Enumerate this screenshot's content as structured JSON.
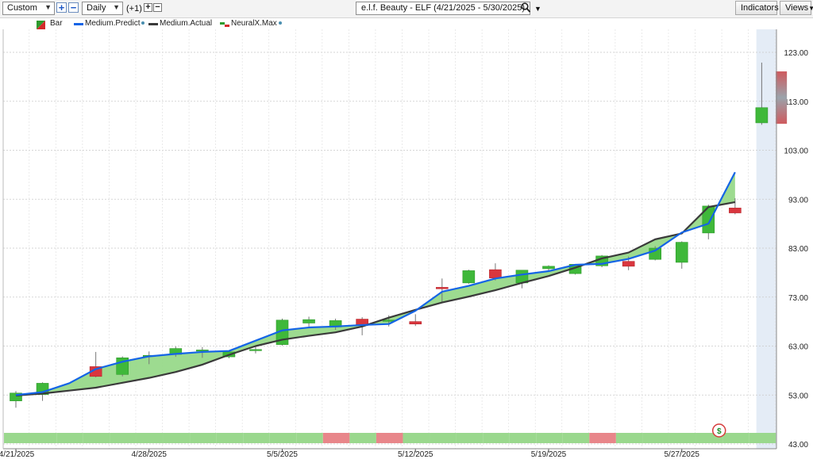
{
  "toolbar": {
    "period_select": "Custom",
    "interval_select": "Daily",
    "offset_label": "(+1)",
    "chart_title": "e.l.f. Beauty - ELF (4/21/2025 - 5/30/2025)",
    "indicators_button": "Indicators",
    "views_button": "Views",
    "icons": [
      "dropdown-arrow-icon",
      "plus-icon",
      "minus-icon",
      "search-icon",
      "chevron-down-icon"
    ]
  },
  "legend": [
    {
      "label": "Bar",
      "color": "#2e8b2e"
    },
    {
      "label": "Medium.Predict",
      "color": "#1464e6"
    },
    {
      "label": "Medium.Actual",
      "color": "#3a3a3a"
    },
    {
      "label": "NeuralX.Max",
      "color": "#d42a2a"
    }
  ],
  "chart_data": {
    "type": "candlestick",
    "x_tick_labels": [
      "4/21/2025",
      "4/28/2025",
      "5/5/2025",
      "5/12/2025",
      "5/19/2025",
      "5/27/2025"
    ],
    "y_tick_labels": [
      "43.00",
      "53.00",
      "63.00",
      "73.00",
      "83.00",
      "93.00",
      "103.00",
      "113.00",
      "123.00"
    ],
    "ylim": [
      42,
      127
    ],
    "grid": true,
    "dates": [
      "4/21",
      "4/22",
      "4/23",
      "4/24",
      "4/25",
      "4/28",
      "4/29",
      "4/30",
      "5/1",
      "5/2",
      "5/5",
      "5/6",
      "5/7",
      "5/8",
      "5/9",
      "5/12",
      "5/13",
      "5/14",
      "5/15",
      "5/16",
      "5/19",
      "5/20",
      "5/21",
      "5/22",
      "5/23",
      "5/27",
      "5/28",
      "5/29",
      "5/30"
    ],
    "candles": [
      {
        "o": 51.8,
        "h": 53.8,
        "l": 50.4,
        "c": 53.4
      },
      {
        "o": 53.1,
        "h": 55.6,
        "l": 51.8,
        "c": 55.4
      },
      null,
      {
        "o": 58.8,
        "h": 61.8,
        "l": 56.6,
        "c": 56.8
      },
      {
        "o": 57.2,
        "h": 60.9,
        "l": 56.8,
        "c": 60.6
      },
      {
        "o": 60.9,
        "h": 61.9,
        "l": 59.3,
        "c": 61.1
      },
      {
        "o": 61.3,
        "h": 62.9,
        "l": 60.8,
        "c": 62.5
      },
      {
        "o": 62.0,
        "h": 62.8,
        "l": 60.6,
        "c": 62.2
      },
      {
        "o": 60.8,
        "h": 62.0,
        "l": 60.5,
        "c": 61.8
      },
      {
        "o": 62.1,
        "h": 63.0,
        "l": 61.5,
        "c": 62.3
      },
      {
        "o": 63.3,
        "h": 68.6,
        "l": 63.1,
        "c": 68.3
      },
      {
        "o": 67.7,
        "h": 69.0,
        "l": 67.0,
        "c": 68.4
      },
      {
        "o": 66.9,
        "h": 68.6,
        "l": 66.3,
        "c": 68.2
      },
      {
        "o": 68.5,
        "h": 68.9,
        "l": 65.2,
        "c": 67.2
      },
      {
        "o": 68.1,
        "h": 69.3,
        "l": 67.0,
        "c": 68.3
      },
      {
        "o": 68.0,
        "h": 69.5,
        "l": 67.1,
        "c": 67.5
      },
      {
        "o": 75.0,
        "h": 76.8,
        "l": 72.0,
        "c": 74.7
      },
      {
        "o": 75.9,
        "h": 78.6,
        "l": 75.7,
        "c": 78.4
      },
      {
        "o": 78.6,
        "h": 79.9,
        "l": 76.4,
        "c": 76.9
      },
      {
        "o": 75.9,
        "h": 78.5,
        "l": 74.8,
        "c": 78.5
      },
      {
        "o": 78.8,
        "h": 79.5,
        "l": 78.3,
        "c": 79.3
      },
      {
        "o": 77.8,
        "h": 79.7,
        "l": 77.6,
        "c": 79.7
      },
      {
        "o": 79.4,
        "h": 81.6,
        "l": 79.1,
        "c": 81.4
      },
      {
        "o": 80.3,
        "h": 81.3,
        "l": 78.5,
        "c": 79.3
      },
      {
        "o": 80.7,
        "h": 83.4,
        "l": 80.5,
        "c": 83.0
      },
      {
        "o": 80.1,
        "h": 84.4,
        "l": 78.8,
        "c": 84.2
      },
      {
        "o": 86.1,
        "h": 91.9,
        "l": 84.8,
        "c": 91.6
      },
      {
        "o": 91.2,
        "h": 93.2,
        "l": 89.9,
        "c": 90.2
      },
      {
        "o": 108.6,
        "h": 120.9,
        "l": 108.2,
        "c": 111.7
      }
    ],
    "series": [
      {
        "name": "Medium.Predict",
        "values": [
          53.0,
          53.6,
          55.4,
          58.3,
          59.8,
          60.9,
          61.4,
          61.8,
          62.0,
          64.1,
          66.2,
          66.8,
          67.0,
          67.3,
          67.5,
          70.2,
          74.1,
          75.3,
          76.8,
          77.6,
          78.3,
          79.6,
          79.8,
          80.8,
          82.5,
          86.2,
          88.0,
          98.5,
          null
        ]
      },
      {
        "name": "Medium.Actual",
        "values": [
          52.9,
          53.3,
          53.9,
          54.5,
          55.5,
          56.5,
          57.7,
          59.2,
          61.2,
          63.0,
          64.3,
          65.1,
          65.8,
          67.0,
          68.8,
          70.4,
          71.9,
          73.1,
          74.4,
          75.9,
          77.3,
          79.0,
          80.9,
          82.1,
          84.8,
          86.0,
          91.4,
          92.4,
          null
        ]
      }
    ],
    "forecast_band": {
      "high": 119.1,
      "low": 108.4
    },
    "signal_strip": [
      "green",
      "green",
      "green",
      "green",
      "green",
      "green",
      "green",
      "green",
      "green",
      "green",
      "green",
      "green",
      "red",
      "green",
      "red",
      "green",
      "green",
      "green",
      "green",
      "green",
      "green",
      "green",
      "red",
      "green",
      "green",
      "green",
      "green",
      "green",
      "green"
    ],
    "fill_color": "#98d98a",
    "up_color": "#3fb83a",
    "down_color": "#d9363e"
  }
}
